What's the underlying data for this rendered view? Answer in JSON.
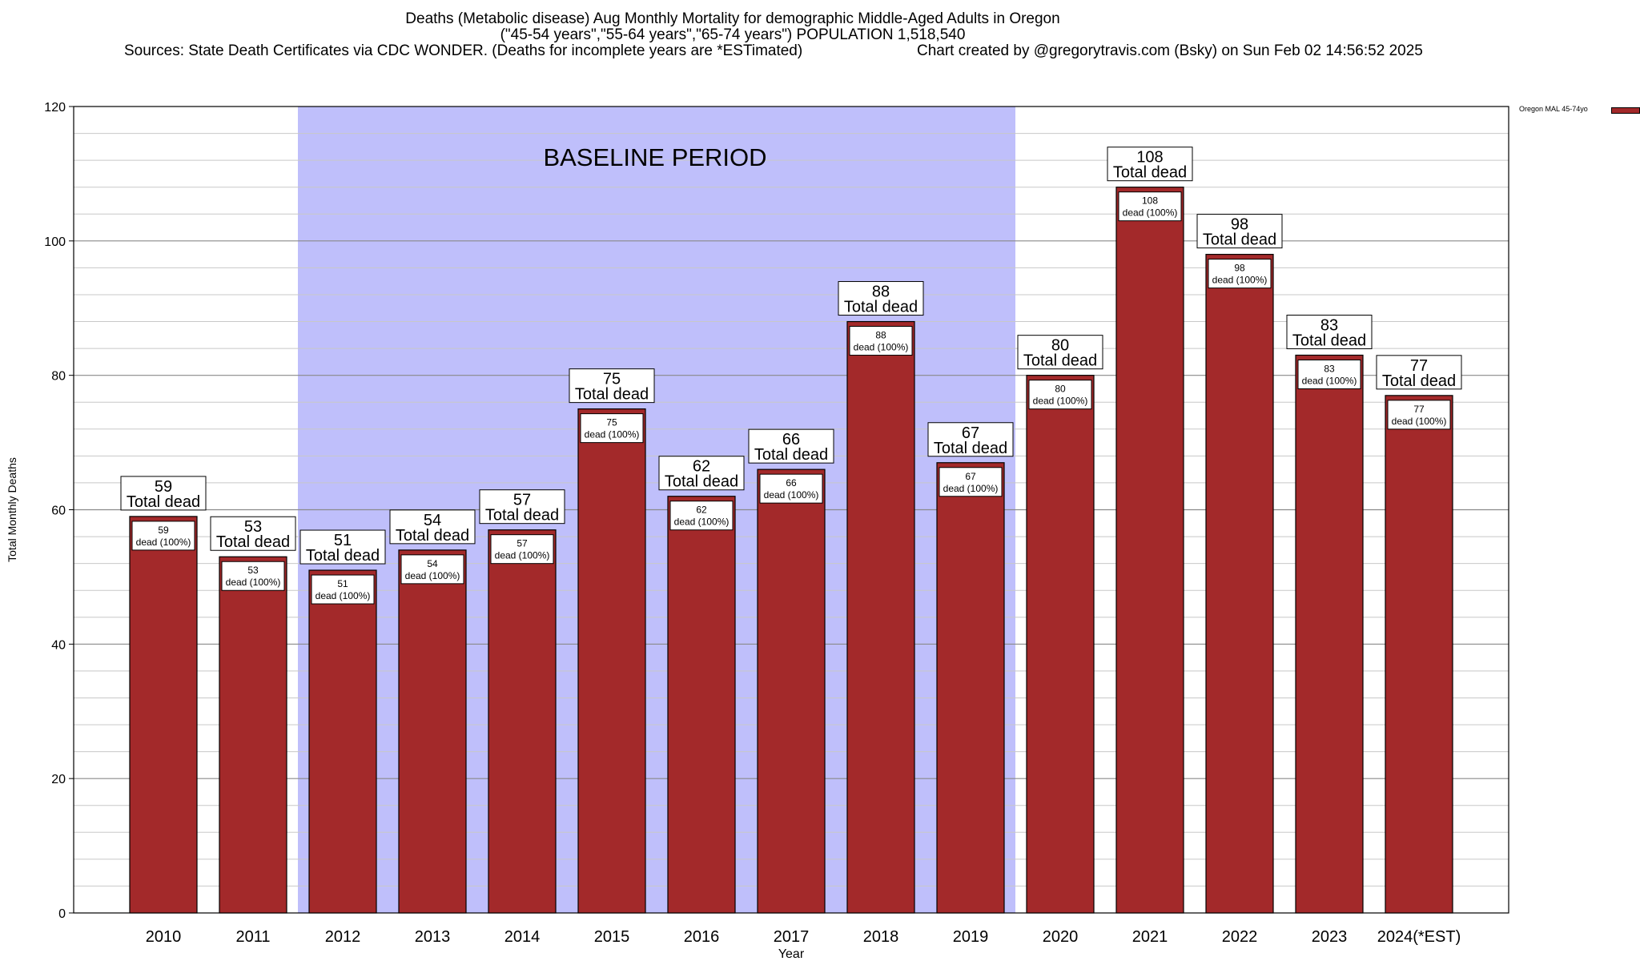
{
  "header": {
    "line1": "Deaths (Metabolic disease) Aug Monthly Mortality for demographic Middle-Aged Adults in Oregon",
    "line2": "(\"45-54 years\",\"55-64 years\",\"65-74 years\") POPULATION 1,518,540",
    "line3": "Sources: State Death Certificates via CDC WONDER. (Deaths for incomplete years are *ESTimated)",
    "line4": "Chart created by @gregorytravis.com (Bsky) on Sun Feb 02 14:56:52 2025"
  },
  "legend": {
    "label": "Oregon MAL 45-74yo"
  },
  "colors": {
    "bar": "#a3292a",
    "baseline": "#bfbffb",
    "grid": "#c8c8c8"
  },
  "chart_data": {
    "type": "bar",
    "title": "Deaths (Metabolic disease) Aug Monthly Mortality for demographic Middle-Aged Adults in Oregon",
    "xlabel": "Year",
    "ylabel": "Total Monthly Deaths",
    "ylim": [
      0,
      120
    ],
    "yticks": [
      0,
      20,
      40,
      60,
      80,
      100,
      120
    ],
    "grid": true,
    "legend_position": "top-right",
    "categories": [
      "2010",
      "2011",
      "2012",
      "2013",
      "2014",
      "2015",
      "2016",
      "2017",
      "2018",
      "2019",
      "2020",
      "2021",
      "2022",
      "2023",
      "2024(*EST)"
    ],
    "series": [
      {
        "name": "Oregon MAL 45-74yo",
        "values": [
          59,
          53,
          51,
          54,
          57,
          75,
          62,
          66,
          88,
          67,
          80,
          108,
          98,
          83,
          77
        ]
      }
    ],
    "total_label": "Total dead",
    "inner_label": "dead (100%)",
    "baseline": {
      "label": "BASELINE PERIOD",
      "from": "2012",
      "to": "2019"
    }
  }
}
